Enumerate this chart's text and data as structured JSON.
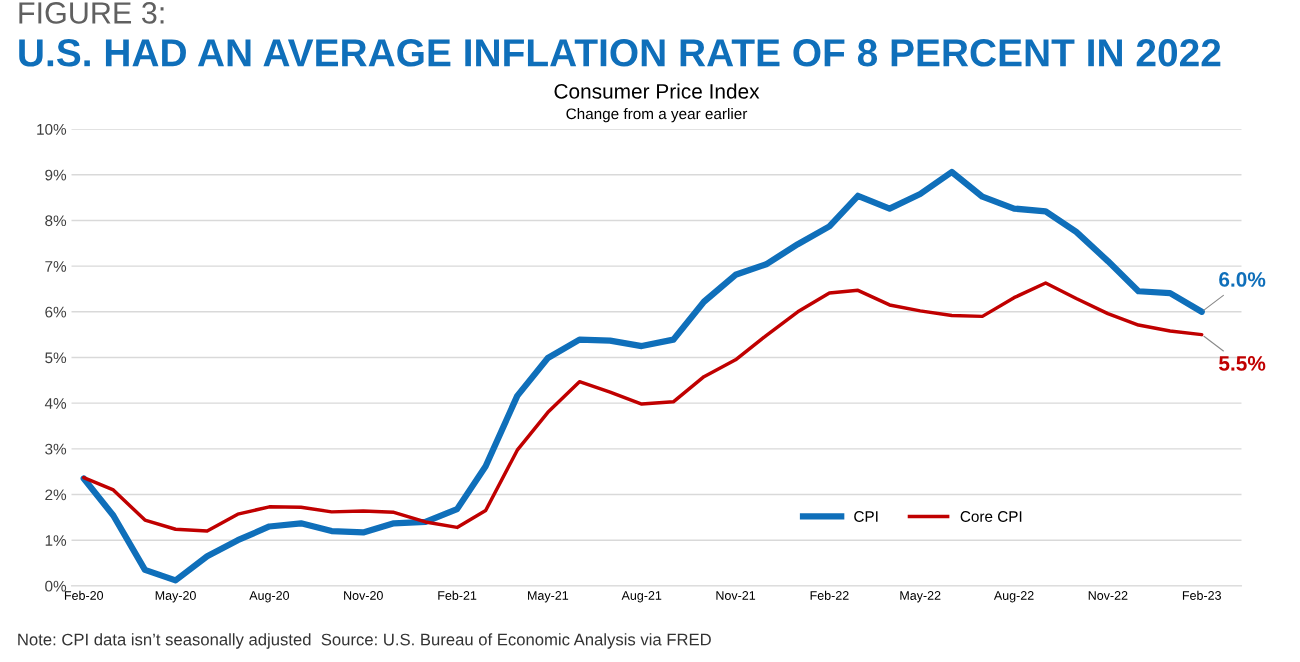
{
  "chart_data": {
    "type": "line",
    "title": "U.S. HAD AN AVERAGE INFLATION RATE OF 8 PERCENT IN 2022",
    "subtitle": "Consumer Price Index",
    "annotations": [
      "FIGURE 3:",
      "Change from a year earlier",
      "Note: CPI data isn’t seasonally adjusted  Source: U.S. Bureau of Economic Analysis via FRED",
      {
        "text": "6.0%",
        "x": "2023-02",
        "y": 6.0
      },
      {
        "text": "5.5%",
        "x": "2023-02",
        "y": 5.5
      }
    ],
    "x": [
      "2020-02",
      "2020-03",
      "2020-04",
      "2020-05",
      "2020-06",
      "2020-07",
      "2020-08",
      "2020-09",
      "2020-10",
      "2020-11",
      "2020-12",
      "2021-01",
      "2021-02",
      "2021-03",
      "2021-04",
      "2021-05",
      "2021-06",
      "2021-07",
      "2021-08",
      "2021-09",
      "2021-10",
      "2021-11",
      "2021-12",
      "2022-01",
      "2022-02",
      "2022-03",
      "2022-04",
      "2022-05",
      "2022-06",
      "2022-07",
      "2022-08",
      "2022-09",
      "2022-10",
      "2022-11",
      "2022-12",
      "2023-01",
      "2023-02"
    ],
    "series": [
      {
        "name": "CPI",
        "color": "#0f6fba",
        "values": [
          2.35,
          1.54,
          0.35,
          0.12,
          0.65,
          1.0,
          1.3,
          1.37,
          1.2,
          1.17,
          1.37,
          1.4,
          1.68,
          2.62,
          4.16,
          4.99,
          5.39,
          5.37,
          5.25,
          5.39,
          6.22,
          6.81,
          7.04,
          7.48,
          7.87,
          8.54,
          8.26,
          8.58,
          9.06,
          8.52,
          8.26,
          8.2,
          7.75,
          7.11,
          6.45,
          6.41,
          6.0
        ]
      },
      {
        "name": "Core CPI",
        "color": "#c00000",
        "values": [
          2.37,
          2.1,
          1.44,
          1.24,
          1.2,
          1.57,
          1.73,
          1.72,
          1.62,
          1.64,
          1.61,
          1.4,
          1.28,
          1.65,
          2.97,
          3.8,
          4.47,
          4.24,
          3.98,
          4.03,
          4.58,
          4.95,
          5.48,
          6.0,
          6.41,
          6.47,
          6.15,
          6.02,
          5.92,
          5.9,
          6.31,
          6.63,
          6.29,
          5.96,
          5.71,
          5.58,
          5.5
        ]
      }
    ],
    "xlim": [
      "2020-01-20",
      "2023-03-12"
    ],
    "xticks": [
      {
        "value": "2020-02",
        "label": "Feb-20"
      },
      {
        "value": "2020-05",
        "label": "May-20"
      },
      {
        "value": "2020-08",
        "label": "Aug-20"
      },
      {
        "value": "2020-11",
        "label": "Nov-20"
      },
      {
        "value": "2021-02",
        "label": "Feb-21"
      },
      {
        "value": "2021-05",
        "label": "May-21"
      },
      {
        "value": "2021-08",
        "label": "Aug-21"
      },
      {
        "value": "2021-11",
        "label": "Nov-21"
      },
      {
        "value": "2022-02",
        "label": "Feb-22"
      },
      {
        "value": "2022-05",
        "label": "May-22"
      },
      {
        "value": "2022-08",
        "label": "Aug-22"
      },
      {
        "value": "2022-11",
        "label": "Nov-22"
      },
      {
        "value": "2023-02",
        "label": "Feb-23"
      }
    ],
    "ylim": [
      0,
      10
    ],
    "yticks": [
      {
        "value": 0,
        "label": "0%"
      },
      {
        "value": 1,
        "label": "1%"
      },
      {
        "value": 2,
        "label": "2%"
      },
      {
        "value": 3,
        "label": "3%"
      },
      {
        "value": 4,
        "label": "4%"
      },
      {
        "value": 5,
        "label": "5%"
      },
      {
        "value": 6,
        "label": "6%"
      },
      {
        "value": 7,
        "label": "7%"
      },
      {
        "value": 8,
        "label": "8%"
      },
      {
        "value": 9,
        "label": "9%"
      },
      {
        "value": 10,
        "label": "10%"
      }
    ],
    "grid": "y",
    "legend": "bottom right"
  }
}
